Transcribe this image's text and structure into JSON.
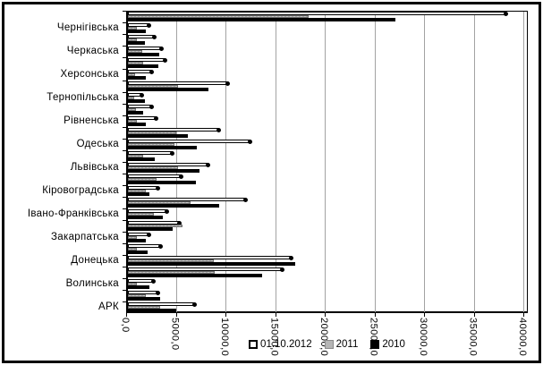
{
  "window": {
    "background": "#ffffff",
    "border_color": "#000000"
  },
  "chart_data": {
    "type": "bar",
    "orientation": "horizontal",
    "title": "",
    "grid": true,
    "colors": {
      "series_01_10_2012": "#ffffff",
      "series_2011": "#b5b5b5",
      "series_2010": "#000000",
      "gridline": "#a3a3a3",
      "plot_border": "#000000"
    },
    "x_axis": {
      "min": 0,
      "max": 40000,
      "tick_interval": 5000,
      "tick_labels": [
        "0,0",
        "5000,0",
        "10000,0",
        "15000,0",
        "20000,0",
        "25000,0",
        "30000,0",
        "35000,0",
        "40000,0"
      ],
      "label_rotation": "vertical"
    },
    "y_axis_note": "category labels shown for every other category only",
    "legend": {
      "position": "bottom-center",
      "entries": [
        "01.10.2012",
        "2011",
        "2010"
      ]
    },
    "series_names": [
      "01.10.2012",
      "2011",
      "2010"
    ],
    "categories_top_to_bottom": [
      {
        "label": "",
        "values": [
          38300,
          18400,
          27100
        ]
      },
      {
        "label": "Чернігівська",
        "values": [
          2300,
          1100,
          2000
        ]
      },
      {
        "label": "",
        "values": [
          2900,
          1100,
          1900
        ]
      },
      {
        "label": "Черкаська",
        "values": [
          3600,
          1600,
          3300
        ]
      },
      {
        "label": "",
        "values": [
          4000,
          1700,
          3200
        ]
      },
      {
        "label": "Херсонська",
        "values": [
          2600,
          900,
          2000
        ]
      },
      {
        "label": "",
        "values": [
          10300,
          5200,
          8300
        ]
      },
      {
        "label": "Тернопільська",
        "values": [
          1600,
          800,
          1900
        ]
      },
      {
        "label": "",
        "values": [
          2600,
          1000,
          1700
        ]
      },
      {
        "label": "Рівненська",
        "values": [
          3100,
          1100,
          2000
        ]
      },
      {
        "label": "",
        "values": [
          9400,
          5000,
          6200
        ]
      },
      {
        "label": "Одеська",
        "values": [
          12500,
          4900,
          7100
        ]
      },
      {
        "label": "",
        "values": [
          4700,
          1700,
          2900
        ]
      },
      {
        "label": "Львівська",
        "values": [
          8300,
          5200,
          7400
        ]
      },
      {
        "label": "",
        "values": [
          5600,
          3100,
          7000
        ]
      },
      {
        "label": "Кіровоградська",
        "values": [
          3200,
          2000,
          2300
        ]
      },
      {
        "label": "",
        "values": [
          12100,
          6500,
          9400
        ]
      },
      {
        "label": "Івано-Франківська",
        "values": [
          4100,
          2800,
          3700
        ]
      },
      {
        "label": "",
        "values": [
          5400,
          5700,
          4700
        ]
      },
      {
        "label": "Закарпатська",
        "values": [
          2300,
          1100,
          2000
        ]
      },
      {
        "label": "",
        "values": [
          3500,
          1100,
          2200
        ]
      },
      {
        "label": "Донецька",
        "values": [
          16700,
          8800,
          17000
        ]
      },
      {
        "label": "",
        "values": [
          15800,
          8900,
          13700
        ]
      },
      {
        "label": "Волинська",
        "values": [
          2800,
          1100,
          2300
        ]
      },
      {
        "label": "",
        "values": [
          3200,
          2000,
          3400
        ]
      },
      {
        "label": "АРК",
        "values": [
          6900,
          3400,
          5000
        ]
      }
    ]
  }
}
